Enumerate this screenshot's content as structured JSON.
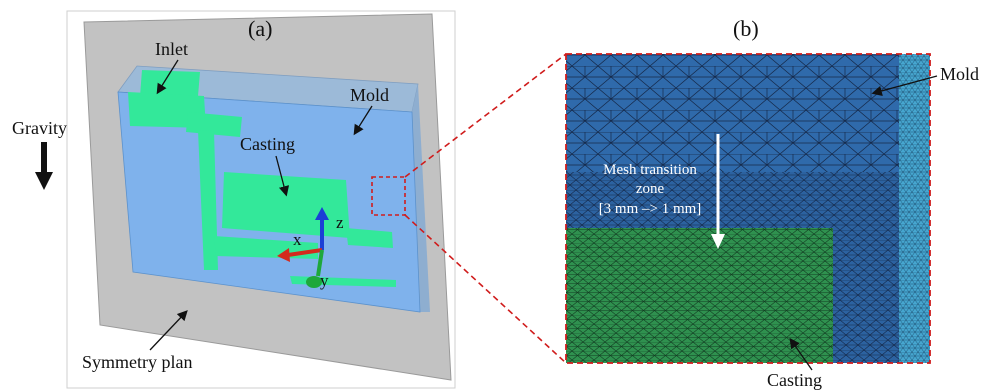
{
  "panel_a": {
    "label": "(a)",
    "gravity_label": "Gravity",
    "inlet_label": "Inlet",
    "mold_label": "Mold",
    "casting_label": "Casting",
    "symmetry_label": "Symmetry plan",
    "axis_x": "x",
    "axis_y": "y",
    "axis_z": "z"
  },
  "panel_b": {
    "label": "(b)",
    "mold_label": "Mold",
    "casting_label": "Casting",
    "transition_line1": "Mesh transition",
    "transition_line2": "zone",
    "transition_line3": "[3 mm –> 1 mm]"
  },
  "colors": {
    "mold_gray": "#c2c2c2",
    "mold_blue": "#7fb2ec",
    "casting_green": "#33e89a",
    "mesh_blue": "#2e67a8",
    "mesh_green": "#2f8f4e",
    "zoom_line": "#d01c1c"
  }
}
